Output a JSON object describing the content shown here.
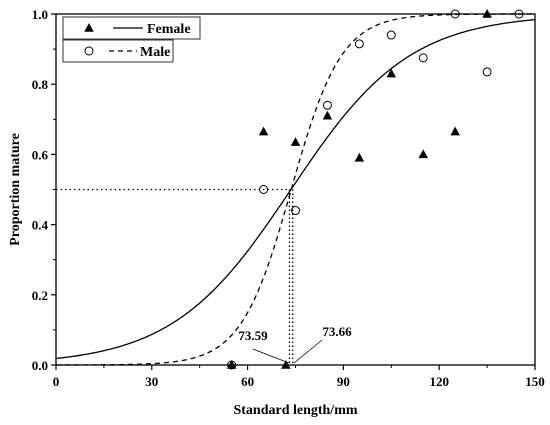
{
  "chart_data": {
    "type": "scatter",
    "xlabel": "Standard length/mm",
    "ylabel": "Proportion mature",
    "xlim": [
      0,
      150
    ],
    "ylim": [
      0,
      1
    ],
    "xticks": [
      0,
      30,
      60,
      90,
      120,
      150
    ],
    "yticks": [
      0.0,
      0.2,
      0.4,
      0.6,
      0.8,
      1.0
    ],
    "xtick_labels": [
      "0",
      "30",
      "60",
      "90",
      "120",
      "150"
    ],
    "ytick_labels": [
      "0.0",
      "0.2",
      "0.4",
      "0.6",
      "0.8",
      "1.0"
    ],
    "legend": [
      {
        "label": "Female",
        "marker": "filled-triangle",
        "line": "solid"
      },
      {
        "label": "Male",
        "marker": "open-circle",
        "line": "dashed"
      }
    ],
    "legend_position": "top-left",
    "series": [
      {
        "name": "Female",
        "marker": "filled-triangle",
        "points": [
          {
            "x": 55,
            "y": 0.0
          },
          {
            "x": 65,
            "y": 0.665
          },
          {
            "x": 72,
            "y": 0.0
          },
          {
            "x": 75,
            "y": 0.635
          },
          {
            "x": 85,
            "y": 0.71
          },
          {
            "x": 95,
            "y": 0.59
          },
          {
            "x": 105,
            "y": 0.83
          },
          {
            "x": 115,
            "y": 0.6
          },
          {
            "x": 125,
            "y": 0.665
          },
          {
            "x": 135,
            "y": 1.0
          }
        ],
        "fit": {
          "line": "solid",
          "L50": 73.59,
          "slope": 0.0539
        }
      },
      {
        "name": "Male",
        "marker": "open-circle",
        "points": [
          {
            "x": 55,
            "y": 0.0
          },
          {
            "x": 65,
            "y": 0.5
          },
          {
            "x": 75,
            "y": 0.44
          },
          {
            "x": 85,
            "y": 0.74
          },
          {
            "x": 95,
            "y": 0.915
          },
          {
            "x": 105,
            "y": 0.94
          },
          {
            "x": 115,
            "y": 0.875
          },
          {
            "x": 125,
            "y": 1.0
          },
          {
            "x": 135,
            "y": 0.835
          },
          {
            "x": 145,
            "y": 1.0
          }
        ],
        "fit": {
          "line": "dashed",
          "L50": 73.66,
          "slope": 0.1274
        }
      }
    ],
    "reference_line": {
      "y": 0.5,
      "style": "dotted"
    },
    "annotations": [
      {
        "text": "73.59",
        "x": 73.59
      },
      {
        "text": "73.66",
        "x": 73.66
      }
    ],
    "grid": false
  }
}
